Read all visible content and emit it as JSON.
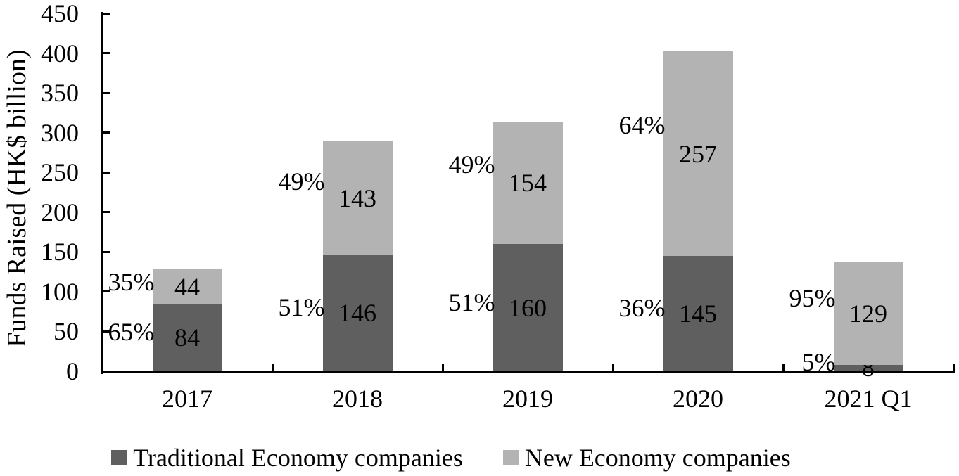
{
  "chart_data": {
    "type": "bar",
    "variant": "stacked-vertical",
    "title": "",
    "xlabel": "",
    "ylabel": "Funds Raised (HK$ billion)",
    "categories": [
      "2017",
      "2018",
      "2019",
      "2020",
      "2021 Q1"
    ],
    "series": [
      {
        "name": "Traditional Economy companies",
        "color": "#5f5f5f",
        "values": [
          84,
          146,
          160,
          145,
          8
        ],
        "pct_labels": [
          "65%",
          "51%",
          "51%",
          "36%",
          "5%"
        ]
      },
      {
        "name": "New Economy companies",
        "color": "#b3b3b3",
        "values": [
          44,
          143,
          154,
          257,
          129
        ],
        "pct_labels": [
          "35%",
          "49%",
          "49%",
          "64%",
          "95%"
        ]
      }
    ],
    "ylim": [
      0,
      450
    ],
    "ytick_step": 50,
    "ytick_labels": [
      "0",
      "50",
      "100",
      "150",
      "200",
      "250",
      "300",
      "350",
      "400",
      "450"
    ],
    "grid": false,
    "legend_position": "bottom",
    "colors": {
      "axis": "#000000",
      "text": "#000000",
      "background": "#ffffff"
    }
  }
}
